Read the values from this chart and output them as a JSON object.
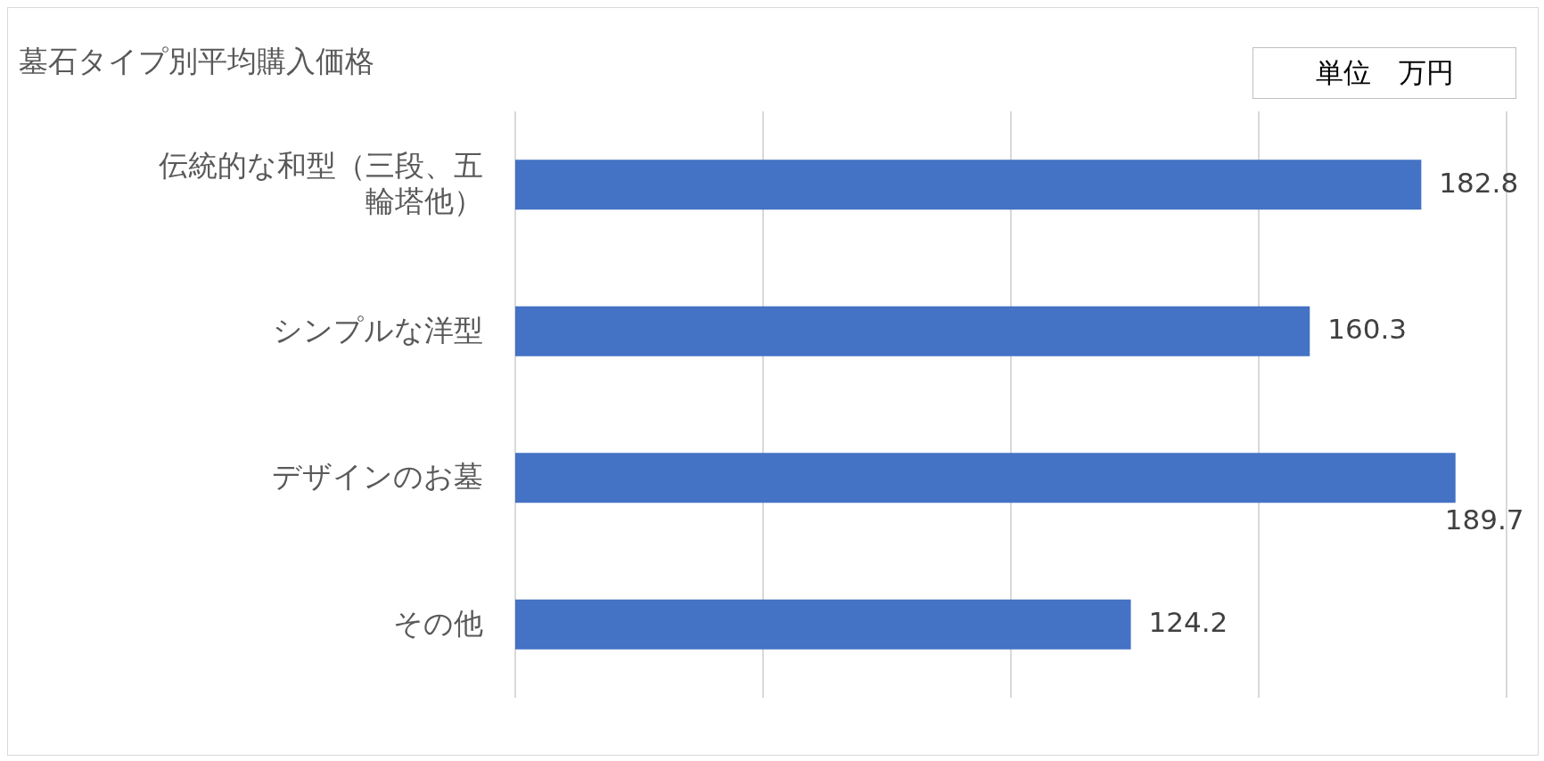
{
  "chart_data": {
    "type": "bar",
    "orientation": "horizontal",
    "title": "墓石タイプ別平均購入価格",
    "annotations": [
      "単位　万円"
    ],
    "categories": [
      "伝統的な和型（三段、五輪塔他）",
      "シンプルな洋型",
      "デザインのお墓",
      "その他"
    ],
    "values": [
      182.8,
      160.3,
      189.7,
      124.2
    ],
    "color": "#4472c4",
    "xlim": [
      0,
      200
    ],
    "xticks": [
      {
        "value": 0,
        "label": null
      },
      {
        "value": 50,
        "label": null
      },
      {
        "value": 100,
        "label": null
      },
      {
        "value": 150,
        "label": null
      },
      {
        "value": 200,
        "label": null
      }
    ],
    "tick_labels": "y",
    "grid": "x",
    "data_labels": true,
    "legend": false
  }
}
